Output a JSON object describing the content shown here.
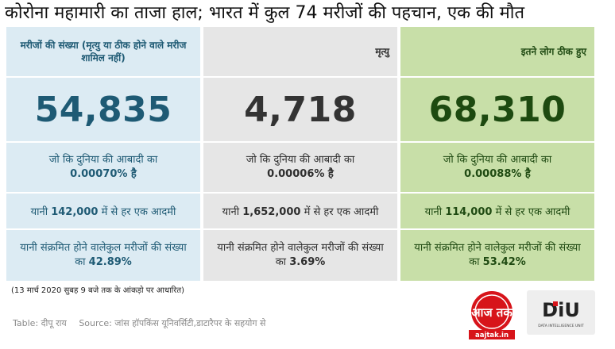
{
  "title": "कोरोना महामारी का ताजा हाल; भारत में कुल 74 मरीजों की पहचान, एक की मौत",
  "columns": [
    {
      "header": "मरीजों की संख्या (मृत्यु या ठीक होने वाले मरीज शामिल नहीं)",
      "count": "54,835",
      "pct_prefix": "जो कि दुनिया की आबादी का",
      "pct_value": "0.00070% है",
      "ratio_prefix": "यानी",
      "ratio_value": "142,000",
      "ratio_suffix": "में से हर एक आदमी",
      "share_prefix": "यानी संक्रमित होने वालेकुल मरीजों की संख्या का",
      "share_value": "42.89%"
    },
    {
      "header": "मृत्यु",
      "count": "4,718",
      "pct_prefix": "जो कि दुनिया की आबादी का",
      "pct_value": "0.00006% है",
      "ratio_prefix": "यानी",
      "ratio_value": "1,652,000",
      "ratio_suffix": "में से हर एक आदमी",
      "share_prefix": "यानी संक्रमित होने वालेकुल मरीजों की संख्या का",
      "share_value": "3.69%"
    },
    {
      "header": "इतने लोग ठीक हुए",
      "count": "68,310",
      "pct_prefix": "जो कि दुनिया की आबादी का",
      "pct_value": "0.00088% है",
      "ratio_prefix": "यानी",
      "ratio_value": "114,000",
      "ratio_suffix": "में से हर एक आदमी",
      "share_prefix": "यानी संक्रमित होने वालेकुल मरीजों की संख्या का",
      "share_value": "53.42%"
    }
  ],
  "note": "(13 मार्च 2020 सुबह 9 बजे तक के आंकड़ो पर आधारित)",
  "credit_table": "Table: दीपू राय",
  "credit_source": "Source: जांस हॉपकिंस यूनिवर्सिटी,डाटारैपर के सहयोग से",
  "logos": {
    "aajtak_text": "आज तक",
    "aajtak_url": "aajtak.in",
    "diu_text": "DiU",
    "diu_sub": "DATA INTELLIGENCE UNIT"
  },
  "colors": {
    "col1_bg": "#dcebf3",
    "col2_bg": "#e6e6e6",
    "col3_bg": "#c8dfa8",
    "col1_text": "#1e5a74",
    "col3_text": "#1d4a10",
    "brand_red": "#d7141a"
  }
}
